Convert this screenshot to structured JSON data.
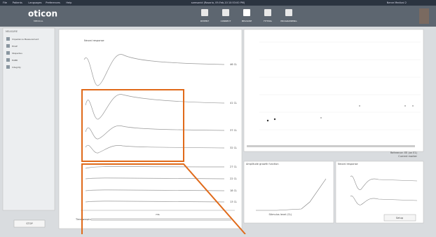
{
  "menu": [
    "File",
    "Patients",
    "Languages",
    "Preferences",
    "Help"
  ],
  "session_title": "samsonid (Rosario, 09-Feb-10 10:53:00 PM)",
  "user": "Nerve Medical 2",
  "logo": {
    "brand": "oticon",
    "sub": "MEDICAL"
  },
  "tabs": [
    "PATIENT",
    "CONNECT",
    "MEASURE",
    "FITTING",
    "PROGRAMMING"
  ],
  "sidebar": {
    "title": "MEASURE",
    "items": [
      "Impedance Measurement",
      "ECAP",
      "Stapedius",
      "EABR",
      "Integrity"
    ]
  },
  "stop_button": "STOP",
  "neural_panel": {
    "title": "Neural response",
    "levels": [
      "46 CL",
      "41 CL",
      "37 CL",
      "32 CL",
      "27 CL",
      "22 CL",
      "18 CL",
      "13 CL"
    ],
    "x_label": "ms",
    "footer": "Time warping"
  },
  "growth_panel": {
    "title": "Amplitude growth function",
    "x_label": "Stimulus level (CL)"
  },
  "small_panel": {
    "title": "Neural response"
  },
  "legend": [
    "Reference: EE (on E1)",
    "Current marker"
  ],
  "setup_button": "Setup"
}
